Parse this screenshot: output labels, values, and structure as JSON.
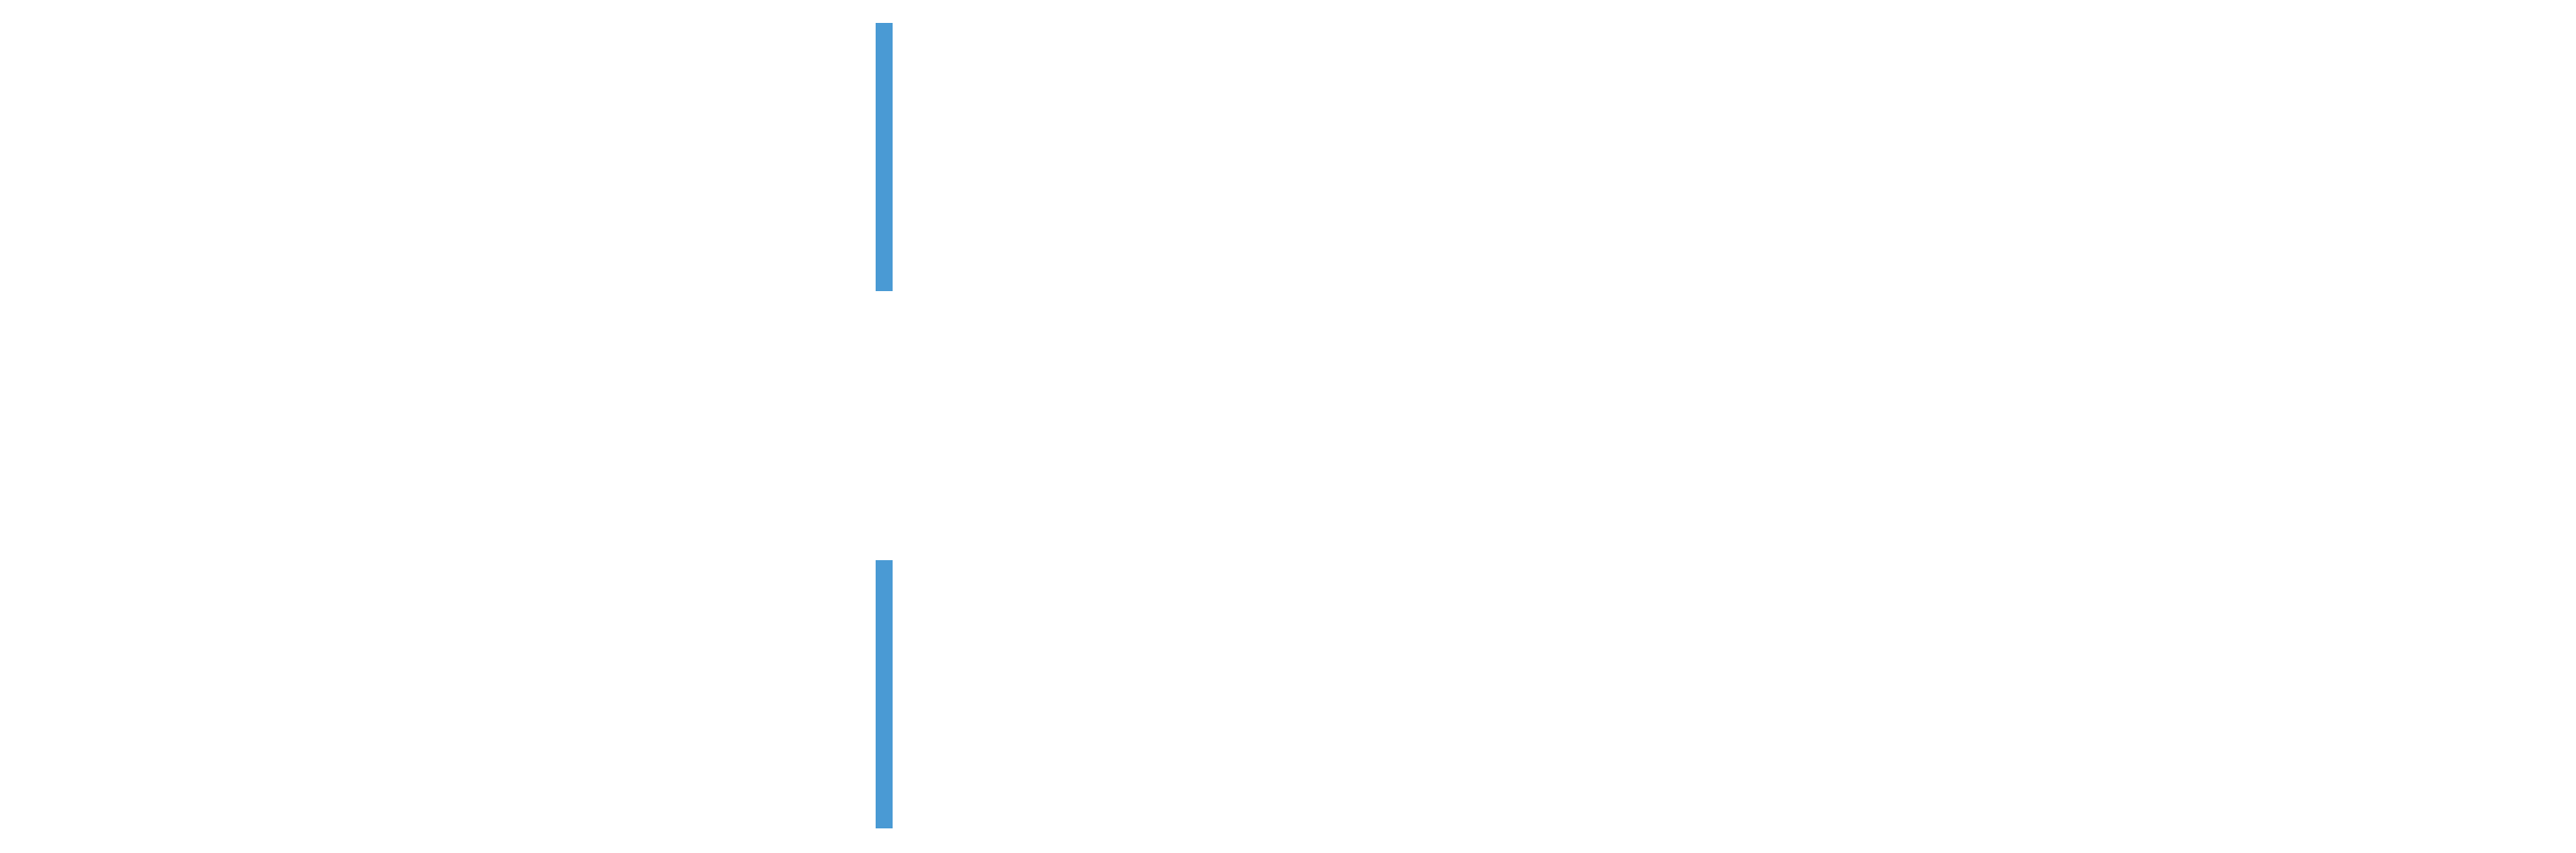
{
  "colors": {
    "background": "#ffffff",
    "accent": "#4a9ad4"
  }
}
